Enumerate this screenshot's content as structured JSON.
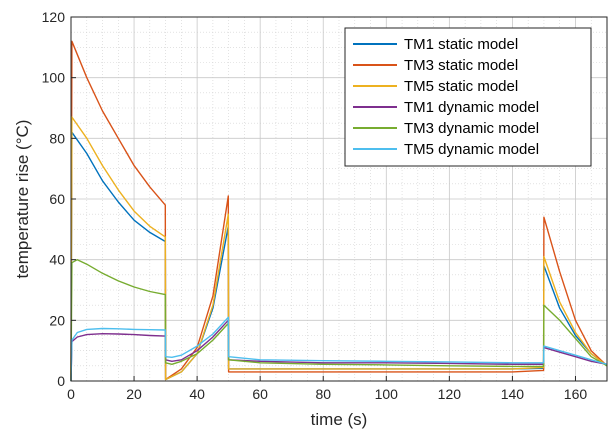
{
  "chart_data": {
    "type": "line",
    "title": "",
    "xlabel": "time (s)",
    "ylabel": "temperature rise (°C)",
    "xlim": [
      0,
      170
    ],
    "ylim": [
      0,
      120
    ],
    "xticks": [
      0,
      20,
      40,
      60,
      80,
      100,
      120,
      140,
      160
    ],
    "yticks": [
      0,
      20,
      40,
      60,
      80,
      100,
      120
    ],
    "grid": true,
    "minor_grid": true,
    "legend_position": "top-right",
    "series": [
      {
        "name": "TM1 static model",
        "color": "#0072BD",
        "points": [
          [
            0,
            0
          ],
          [
            0.3,
            82
          ],
          [
            5,
            75
          ],
          [
            10,
            66
          ],
          [
            15,
            59
          ],
          [
            20,
            53
          ],
          [
            25,
            49
          ],
          [
            29.9,
            46
          ],
          [
            30,
            0.5
          ],
          [
            35,
            3
          ],
          [
            40,
            9
          ],
          [
            45,
            24
          ],
          [
            49.9,
            51
          ],
          [
            50,
            4
          ],
          [
            60,
            4
          ],
          [
            80,
            4
          ],
          [
            100,
            4
          ],
          [
            120,
            4
          ],
          [
            140,
            4
          ],
          [
            149.9,
            4.2
          ],
          [
            150,
            38
          ],
          [
            155,
            24
          ],
          [
            160,
            15
          ],
          [
            165,
            9
          ],
          [
            170,
            5
          ]
        ]
      },
      {
        "name": "TM3 static model",
        "color": "#D95319",
        "points": [
          [
            0,
            0
          ],
          [
            0.3,
            112
          ],
          [
            5,
            100
          ],
          [
            10,
            89
          ],
          [
            15,
            80
          ],
          [
            20,
            71
          ],
          [
            25,
            64
          ],
          [
            29.9,
            58
          ],
          [
            30,
            0.5
          ],
          [
            35,
            4
          ],
          [
            40,
            11
          ],
          [
            45,
            28
          ],
          [
            49.9,
            61
          ],
          [
            50,
            3
          ],
          [
            60,
            3
          ],
          [
            80,
            3
          ],
          [
            100,
            3
          ],
          [
            120,
            3
          ],
          [
            140,
            3
          ],
          [
            149.9,
            3.5
          ],
          [
            150,
            54
          ],
          [
            155,
            36
          ],
          [
            160,
            20
          ],
          [
            165,
            10
          ],
          [
            170,
            5
          ]
        ]
      },
      {
        "name": "TM5 static model",
        "color": "#EDB120",
        "points": [
          [
            0,
            0
          ],
          [
            0.3,
            87
          ],
          [
            5,
            80
          ],
          [
            10,
            71
          ],
          [
            15,
            63
          ],
          [
            20,
            56
          ],
          [
            25,
            51
          ],
          [
            29.9,
            47.5
          ],
          [
            30,
            0.5
          ],
          [
            35,
            3
          ],
          [
            40,
            9
          ],
          [
            45,
            25
          ],
          [
            49.9,
            55
          ],
          [
            50,
            4
          ],
          [
            60,
            4
          ],
          [
            80,
            4
          ],
          [
            100,
            4
          ],
          [
            120,
            4
          ],
          [
            140,
            4
          ],
          [
            149.9,
            4.5
          ],
          [
            150,
            41
          ],
          [
            155,
            26
          ],
          [
            160,
            16
          ],
          [
            165,
            9
          ],
          [
            170,
            5
          ]
        ]
      },
      {
        "name": "TM1 dynamic model",
        "color": "#7E2F8E",
        "points": [
          [
            0,
            0
          ],
          [
            0.3,
            13
          ],
          [
            2,
            14.5
          ],
          [
            5,
            15.3
          ],
          [
            10,
            15.6
          ],
          [
            15,
            15.5
          ],
          [
            20,
            15.3
          ],
          [
            25,
            15
          ],
          [
            29.9,
            14.8
          ],
          [
            30,
            7
          ],
          [
            32,
            6.5
          ],
          [
            35,
            7
          ],
          [
            40,
            10
          ],
          [
            45,
            14.5
          ],
          [
            49.9,
            20
          ],
          [
            50,
            7
          ],
          [
            60,
            6.5
          ],
          [
            80,
            6
          ],
          [
            100,
            6
          ],
          [
            120,
            5.8
          ],
          [
            140,
            5.5
          ],
          [
            149.9,
            5.5
          ],
          [
            150,
            11
          ],
          [
            155,
            9.5
          ],
          [
            160,
            8
          ],
          [
            165,
            6.5
          ],
          [
            170,
            5.5
          ]
        ]
      },
      {
        "name": "TM3 dynamic model",
        "color": "#77AC30",
        "points": [
          [
            0,
            0
          ],
          [
            0.3,
            39
          ],
          [
            2,
            40
          ],
          [
            5,
            38.5
          ],
          [
            10,
            35.5
          ],
          [
            15,
            33
          ],
          [
            20,
            31
          ],
          [
            25,
            29.5
          ],
          [
            29.9,
            28.5
          ],
          [
            30,
            6
          ],
          [
            32,
            5.5
          ],
          [
            35,
            6.5
          ],
          [
            40,
            9
          ],
          [
            45,
            13.5
          ],
          [
            49.9,
            19
          ],
          [
            50,
            7
          ],
          [
            60,
            6
          ],
          [
            80,
            5.5
          ],
          [
            100,
            5.3
          ],
          [
            120,
            5
          ],
          [
            140,
            4.8
          ],
          [
            149.9,
            4.8
          ],
          [
            150,
            25
          ],
          [
            155,
            20
          ],
          [
            160,
            14
          ],
          [
            165,
            8
          ],
          [
            170,
            5
          ]
        ]
      },
      {
        "name": "TM5 dynamic model",
        "color": "#4DBEEE",
        "points": [
          [
            0,
            0
          ],
          [
            0.3,
            13.5
          ],
          [
            2,
            16
          ],
          [
            5,
            17
          ],
          [
            10,
            17.3
          ],
          [
            15,
            17.2
          ],
          [
            20,
            17
          ],
          [
            25,
            16.9
          ],
          [
            29.9,
            16.8
          ],
          [
            30,
            8
          ],
          [
            32,
            7.8
          ],
          [
            35,
            8.5
          ],
          [
            40,
            11.5
          ],
          [
            45,
            15.5
          ],
          [
            49.9,
            21
          ],
          [
            50,
            8
          ],
          [
            60,
            7
          ],
          [
            80,
            6.7
          ],
          [
            100,
            6.5
          ],
          [
            120,
            6.3
          ],
          [
            140,
            6
          ],
          [
            149.9,
            6
          ],
          [
            150,
            11.5
          ],
          [
            155,
            10
          ],
          [
            160,
            8.5
          ],
          [
            165,
            7
          ],
          [
            170,
            5.5
          ]
        ]
      }
    ]
  }
}
